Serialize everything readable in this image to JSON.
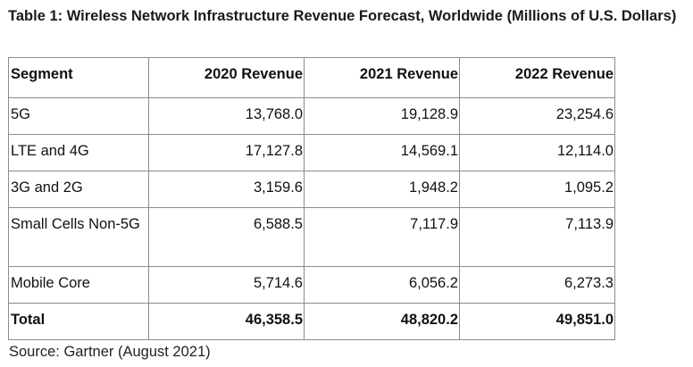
{
  "caption": "Table 1: Wireless Network Infrastructure Revenue Forecast, Worldwide (Millions of U.S. Dollars)",
  "table": {
    "headers": [
      "Segment",
      "2020 Revenue",
      "2021 Revenue",
      "2022 Revenue"
    ],
    "rows": [
      [
        "5G",
        "13,768.0",
        "19,128.9",
        "23,254.6"
      ],
      [
        "LTE and 4G",
        "17,127.8",
        "14,569.1",
        "12,114.0"
      ],
      [
        "3G and 2G",
        "3,159.6",
        "1,948.2",
        "1,095.2"
      ],
      [
        "Small Cells Non-5G",
        "6,588.5",
        "7,117.9",
        "7,113.9"
      ],
      [
        "Mobile Core",
        "5,714.6",
        "6,056.2",
        "6,273.3"
      ]
    ],
    "total": [
      "Total",
      "46,358.5",
      "48,820.2",
      "49,851.0"
    ]
  },
  "source": "Source: Gartner (August 2021)"
}
